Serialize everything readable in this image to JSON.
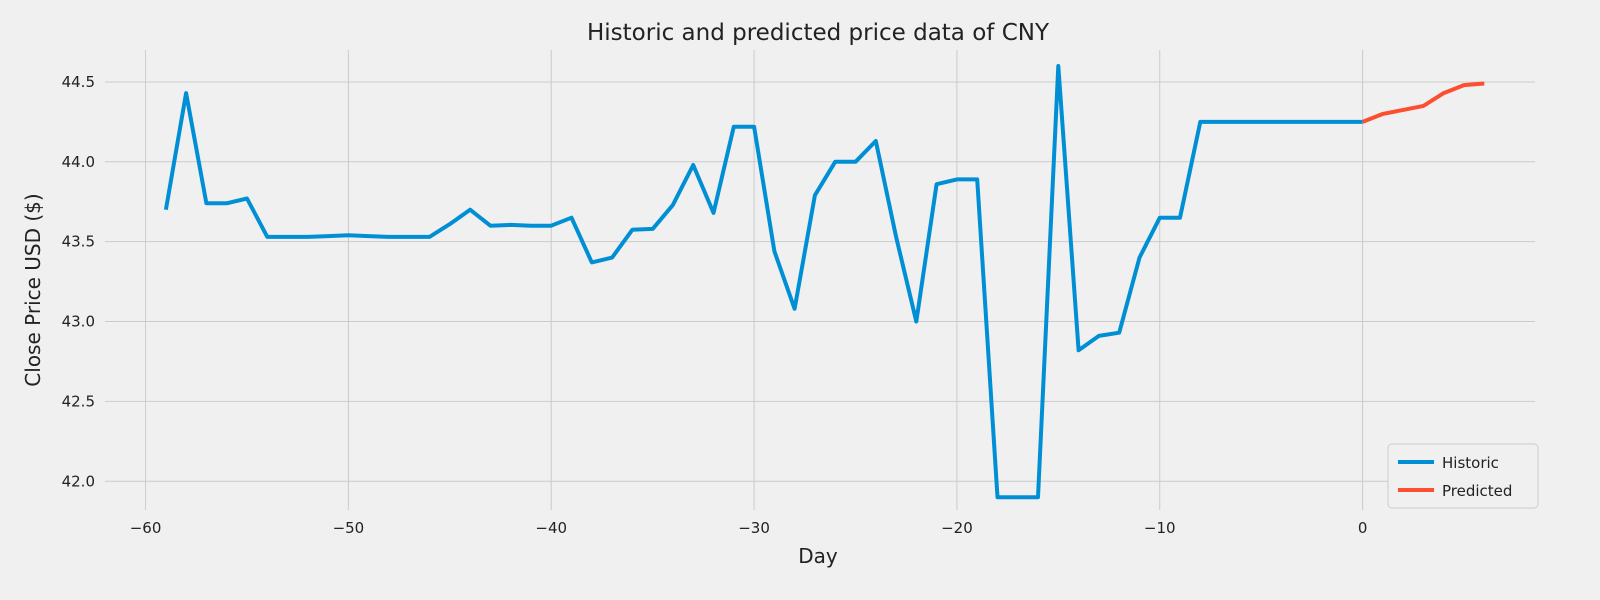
{
  "chart_data": {
    "type": "line",
    "title": "Historic and predicted price data of CNY",
    "xlabel": "Day",
    "ylabel": "Close Price USD ($)",
    "xlim": [
      -62,
      8.5
    ],
    "ylim": [
      41.82,
      44.7
    ],
    "xticks": [
      -60,
      -50,
      -40,
      -30,
      -20,
      -10,
      0
    ],
    "yticks": [
      42.0,
      42.5,
      43.0,
      43.5,
      44.0,
      44.5
    ],
    "xtick_labels": [
      "−60",
      "−50",
      "−40",
      "−30",
      "−20",
      "−10",
      "0"
    ],
    "ytick_labels": [
      "42.0",
      "42.5",
      "43.0",
      "43.5",
      "44.0",
      "44.5"
    ],
    "grid": true,
    "legend_position": "bottom-right",
    "series": [
      {
        "name": "Historic",
        "color": "#008fd5",
        "x": [
          -59,
          -58,
          -57,
          -56,
          -55,
          -54,
          -53,
          -52,
          -51,
          -50,
          -49,
          -48,
          -47,
          -46,
          -45,
          -44,
          -43,
          -42,
          -41,
          -40,
          -39,
          -38,
          -37,
          -36,
          -35,
          -34,
          -33,
          -32,
          -31,
          -30,
          -29,
          -28,
          -27,
          -26,
          -25,
          -24,
          -23,
          -22,
          -21,
          -20,
          -19,
          -18,
          -17,
          -16,
          -15,
          -14,
          -13,
          -12,
          -11,
          -10,
          -9,
          -8,
          -7,
          -6,
          -5,
          -4,
          -3,
          -2,
          -1,
          0
        ],
        "y": [
          43.7,
          44.43,
          43.74,
          43.74,
          43.77,
          43.53,
          43.53,
          43.53,
          43.535,
          43.54,
          43.535,
          43.53,
          43.53,
          43.53,
          43.61,
          43.7,
          43.6,
          43.605,
          43.6,
          43.6,
          43.65,
          43.37,
          43.4,
          43.575,
          43.58,
          43.73,
          43.98,
          43.68,
          44.22,
          44.22,
          43.44,
          43.08,
          43.79,
          44.0,
          44.0,
          44.13,
          43.53,
          43.0,
          43.86,
          43.89,
          43.89,
          41.9,
          41.9,
          41.9,
          44.6,
          42.82,
          42.91,
          42.93,
          43.4,
          43.65,
          43.65,
          44.25,
          44.25,
          44.25,
          44.25,
          44.25,
          44.25,
          44.25,
          44.25,
          44.25
        ]
      },
      {
        "name": "Predicted",
        "color": "#fc4f30",
        "x": [
          0,
          1,
          2,
          3,
          4,
          5,
          6
        ],
        "y": [
          44.25,
          44.3,
          44.325,
          44.35,
          44.43,
          44.48,
          44.49
        ]
      }
    ]
  }
}
